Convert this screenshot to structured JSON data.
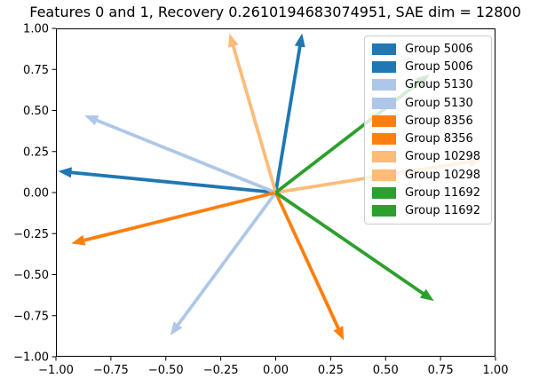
{
  "chart_data": {
    "type": "quiver",
    "title": "Features 0 and 1, Recovery 0.2610194683074951, SAE dim = 12800",
    "features": [
      0,
      1
    ],
    "recovery": 0.2610194683074951,
    "sae_dim": 12800,
    "xlim": [
      -1.0,
      1.0
    ],
    "ylim": [
      -1.0,
      1.0
    ],
    "grid": false,
    "xticks": {
      "values": [
        -1.0,
        -0.75,
        -0.5,
        -0.25,
        0.0,
        0.25,
        0.5,
        0.75,
        1.0
      ],
      "labels": [
        "−1.00",
        "−0.75",
        "−0.50",
        "−0.25",
        "0.00",
        "0.25",
        "0.50",
        "0.75",
        "1.00"
      ]
    },
    "yticks": {
      "values": [
        -1.0,
        -0.75,
        -0.5,
        -0.25,
        0.0,
        0.25,
        0.5,
        0.75,
        1.0
      ],
      "labels": [
        "−1.00",
        "−0.75",
        "−0.50",
        "−0.25",
        "0.00",
        "0.25",
        "0.50",
        "0.75",
        "1.00"
      ]
    },
    "origin": [
      0.0,
      0.0
    ],
    "arrows": [
      {
        "group": "Group 5006",
        "color": "#1f77b4",
        "dx": 0.12,
        "dy": 0.97
      },
      {
        "group": "Group 5006",
        "color": "#1f77b4",
        "dx": -0.99,
        "dy": 0.13
      },
      {
        "group": "Group 5130",
        "color": "#aec7e8",
        "dx": -0.87,
        "dy": 0.47
      },
      {
        "group": "Group 5130",
        "color": "#aec7e8",
        "dx": -0.48,
        "dy": -0.87
      },
      {
        "group": "Group 8356",
        "color": "#ff7f0e",
        "dx": -0.93,
        "dy": -0.31
      },
      {
        "group": "Group 8356",
        "color": "#ff7f0e",
        "dx": 0.31,
        "dy": -0.9
      },
      {
        "group": "Group 10298",
        "color": "#ffbb78",
        "dx": -0.21,
        "dy": 0.97
      },
      {
        "group": "Group 10298",
        "color": "#ffbb78",
        "dx": 0.94,
        "dy": 0.2
      },
      {
        "group": "Group 11692",
        "color": "#2ca02c",
        "dx": 0.7,
        "dy": 0.72
      },
      {
        "group": "Group 11692",
        "color": "#2ca02c",
        "dx": 0.72,
        "dy": -0.66
      }
    ],
    "legend": {
      "position": "upper right",
      "entries": [
        {
          "label": "Group 5006",
          "color": "#1f77b4"
        },
        {
          "label": "Group 5006",
          "color": "#1f77b4"
        },
        {
          "label": "Group 5130",
          "color": "#aec7e8"
        },
        {
          "label": "Group 5130",
          "color": "#aec7e8"
        },
        {
          "label": "Group 8356",
          "color": "#ff7f0e"
        },
        {
          "label": "Group 8356",
          "color": "#ff7f0e"
        },
        {
          "label": "Group 10298",
          "color": "#ffbb78"
        },
        {
          "label": "Group 10298",
          "color": "#ffbb78"
        },
        {
          "label": "Group 11692",
          "color": "#2ca02c"
        },
        {
          "label": "Group 11692",
          "color": "#2ca02c"
        }
      ]
    }
  }
}
